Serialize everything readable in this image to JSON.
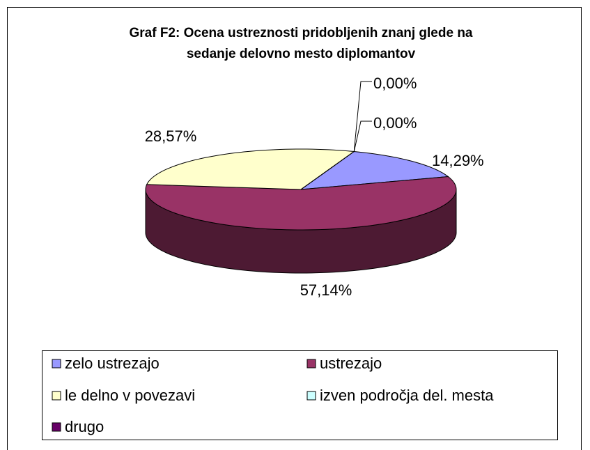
{
  "chart_data": {
    "type": "pie3d",
    "title_lines": [
      "Graf F2: Ocena ustreznosti pridobljenih znanj glede na",
      "sedanje delovno mesto diplomantov"
    ],
    "categories": [
      "zelo ustrezajo",
      "ustrezajo",
      "le delno v povezavi",
      "izven področja del. mesta",
      "drugo"
    ],
    "values": [
      14.29,
      57.14,
      28.57,
      0,
      0
    ],
    "value_labels": [
      "14,29%",
      "57,14%",
      "28,57%",
      "0,00%",
      "0,00%"
    ],
    "colors": [
      "#9999ff",
      "#993366",
      "#ffffcc",
      "#ccffff",
      "#660066"
    ],
    "legend": "bottom"
  }
}
